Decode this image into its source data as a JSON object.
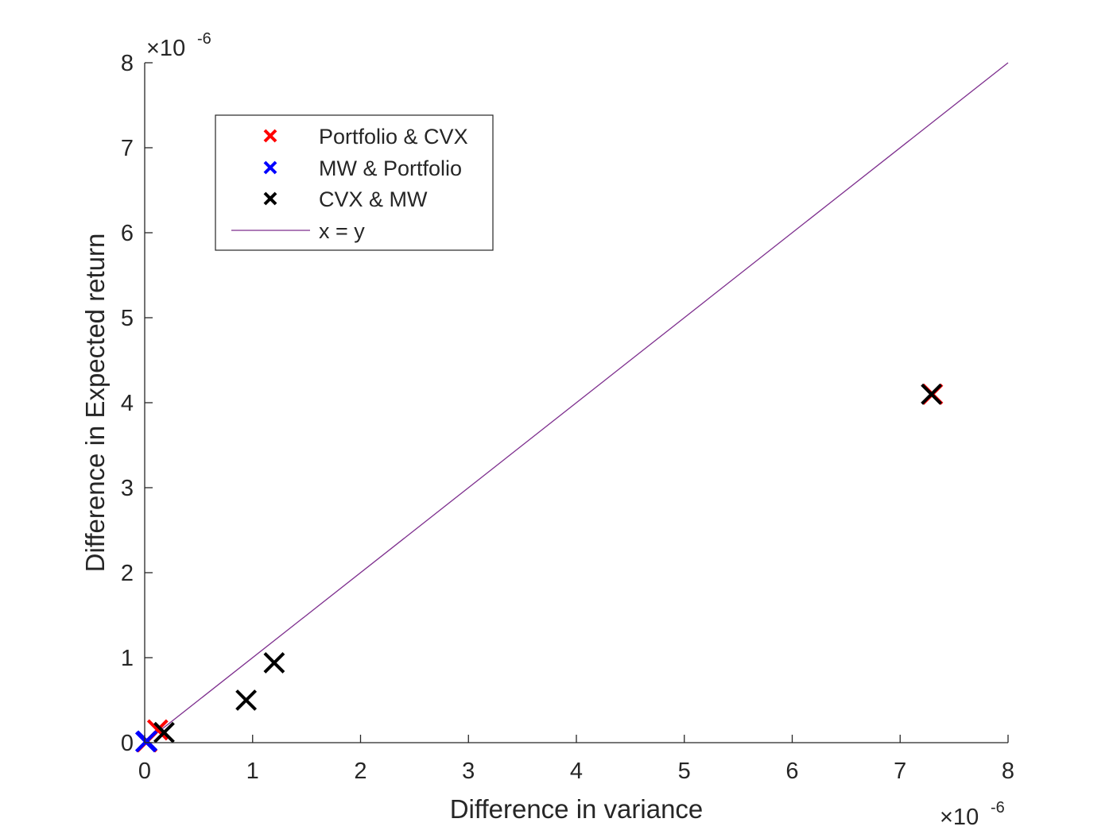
{
  "chart_data": {
    "type": "scatter",
    "title": "",
    "xlabel": "Difference in variance",
    "ylabel": "Difference in Expected return",
    "x_multiplier": "×10",
    "x_exponent": "-6",
    "y_multiplier": "×10",
    "y_exponent": "-6",
    "xlim": [
      0,
      8
    ],
    "ylim": [
      0,
      8
    ],
    "x_ticks": [
      "0",
      "1",
      "2",
      "3",
      "4",
      "5",
      "6",
      "7",
      "8"
    ],
    "y_ticks": [
      "0",
      "1",
      "2",
      "3",
      "4",
      "5",
      "6",
      "7",
      "8"
    ],
    "grid": false,
    "legend_position": "top-left",
    "series": [
      {
        "name": "Portfolio & CVX",
        "color": "#ff0000",
        "marker": "x",
        "points": [
          [
            0.02,
            0.01
          ],
          [
            0.12,
            0.15
          ],
          [
            7.3,
            4.1
          ]
        ]
      },
      {
        "name": "MW & Portfolio",
        "color": "#0000ff",
        "marker": "x",
        "points": [
          [
            0.01,
            0.01
          ],
          [
            0.02,
            0.02
          ]
        ]
      },
      {
        "name": "CVX & MW",
        "color": "#000000",
        "marker": "x",
        "points": [
          [
            0.18,
            0.12
          ],
          [
            0.94,
            0.5
          ],
          [
            1.2,
            0.94
          ],
          [
            7.29,
            4.1
          ]
        ]
      },
      {
        "name": "x = y",
        "color": "#7e2f8e",
        "marker": "line",
        "points": [
          [
            0,
            0
          ],
          [
            8,
            8
          ]
        ]
      }
    ]
  }
}
